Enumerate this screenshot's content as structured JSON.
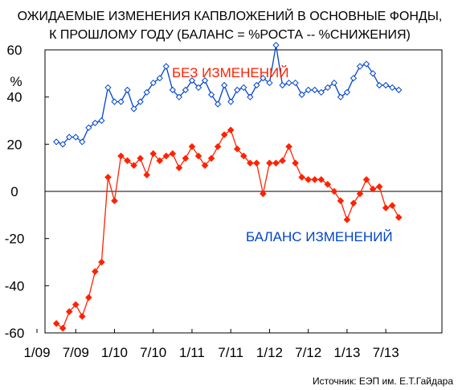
{
  "chart_data": {
    "type": "line",
    "title_lines": [
      "ОЖИДАЕМЫЕ ИЗМЕНЕНИЯ КАПВЛОЖЕНИЙ В ОСНОВНЫЕ ФОНДЫ,",
      "К ПРОШЛОМУ ГОДУ (БАЛАНС = %РОСТА -- %СНИЖЕНИЯ)"
    ],
    "y_unit": "%",
    "ylim": [
      -60,
      60
    ],
    "y_ticks": [
      "60",
      "40",
      "20",
      "0",
      "-20",
      "-40",
      "-60"
    ],
    "y_tick_values": [
      60,
      40,
      20,
      0,
      -20,
      -40,
      -60
    ],
    "x_tick_labels": [
      "1/09",
      "7/09",
      "1/10",
      "7/10",
      "1/11",
      "7/11",
      "1/12",
      "7/12",
      "1/13",
      "7/13"
    ],
    "x_tick_months": [
      0,
      6,
      12,
      18,
      24,
      30,
      36,
      42,
      48,
      54
    ],
    "zero_line": true,
    "grid": false,
    "series": [
      {
        "name": "БЕЗ ИЗМЕНЕНИЙ",
        "color": "#ff2200",
        "marker": "filled-diamond",
        "x": [
          3,
          4,
          5,
          6,
          7,
          8,
          9,
          10,
          11,
          12,
          13,
          14,
          15,
          16,
          17,
          18,
          19,
          20,
          21,
          22,
          23,
          24,
          25,
          26,
          27,
          28,
          29,
          30,
          31,
          32,
          33,
          34,
          35,
          36,
          37,
          38,
          39,
          40,
          41,
          42,
          43,
          44,
          45,
          46,
          47,
          48,
          49,
          50,
          51,
          52,
          53,
          54,
          55,
          56
        ],
        "values": [
          -56,
          -58,
          -51,
          -48,
          -53,
          -45,
          -34,
          -30,
          6,
          -4,
          15,
          13,
          11,
          14,
          7,
          16,
          13,
          15,
          16,
          10,
          14,
          19,
          15,
          11,
          14,
          19,
          24,
          26,
          18,
          15,
          12,
          12,
          -1,
          12,
          12,
          13,
          19,
          12,
          6,
          5,
          5,
          5,
          3,
          0,
          -4,
          -12,
          -5,
          -1,
          5,
          1,
          2,
          -7,
          -6,
          -11
        ]
      },
      {
        "name": "БАЛАНС ИЗМЕНЕНИЙ",
        "color": "#0044cc",
        "marker": "open-diamond",
        "x": [
          3,
          4,
          5,
          6,
          7,
          8,
          9,
          10,
          11,
          12,
          13,
          14,
          15,
          16,
          17,
          18,
          19,
          20,
          21,
          22,
          23,
          24,
          25,
          26,
          27,
          28,
          29,
          30,
          31,
          32,
          33,
          34,
          35,
          36,
          37,
          38,
          39,
          40,
          41,
          42,
          43,
          44,
          45,
          46,
          47,
          48,
          49,
          50,
          51,
          52,
          53,
          54,
          55,
          56
        ],
        "values": [
          21,
          20,
          23,
          23,
          21,
          27,
          29,
          30,
          44,
          38,
          38,
          43,
          35,
          38,
          42,
          46,
          48,
          53,
          43,
          40,
          43,
          47,
          44,
          47,
          41,
          37,
          45,
          38,
          43,
          44,
          40,
          45,
          48,
          46,
          62,
          45,
          46,
          46,
          41,
          43,
          43,
          42,
          44,
          46,
          40,
          42,
          48,
          53,
          54,
          50,
          45,
          45,
          44,
          43
        ]
      }
    ],
    "source": "Источник: ЕЭП им. Е.Т.Гайдара"
  }
}
